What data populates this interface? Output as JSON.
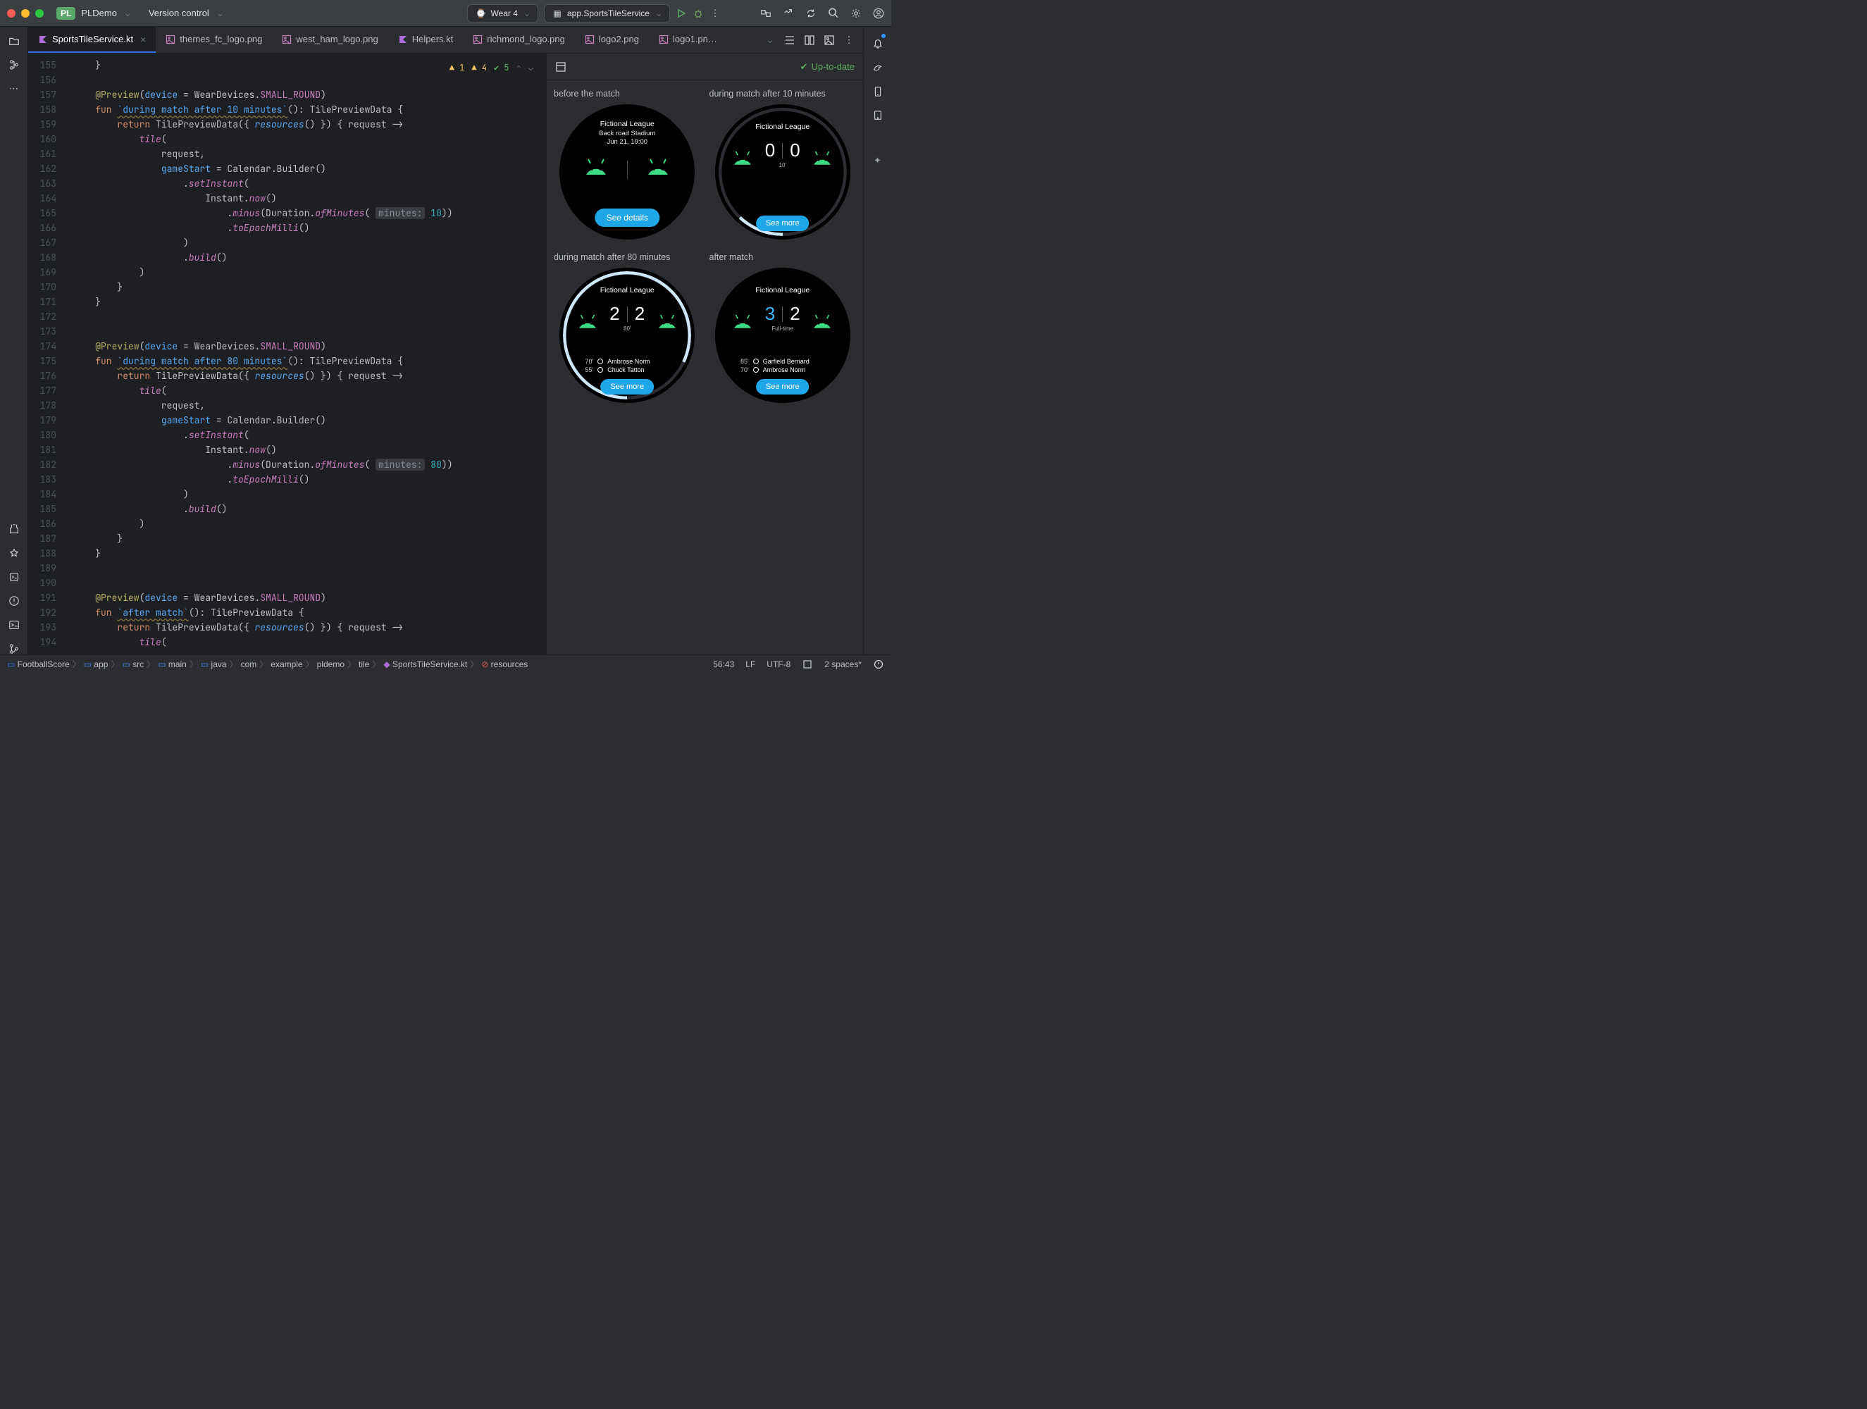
{
  "colors": {
    "traffic_red": "#ff5f57",
    "traffic_yellow": "#febc2e",
    "traffic_green": "#28c840",
    "accent": "#3574f0",
    "run_green": "#59a869",
    "debug": "#6f737a",
    "kotlin": "#af6bd8",
    "img": "#c77dbb",
    "warn_num": "#f2c55c",
    "check": "#5fad65",
    "pill": "#1ea7e8",
    "android": "#3ddc84",
    "arc_dim": "#3a3d42",
    "arc_bright": "#cfe8ff"
  },
  "titlebar": {
    "badge": "PL",
    "project": "PLDemo",
    "vcs": "Version control",
    "device": "Wear 4",
    "config": "app.SportsTileService"
  },
  "tabs": [
    {
      "label": "SportsTileService.kt",
      "type": "kt",
      "active": true,
      "closable": true
    },
    {
      "label": "themes_fc_logo.png",
      "type": "img"
    },
    {
      "label": "west_ham_logo.png",
      "type": "img"
    },
    {
      "label": "Helpers.kt",
      "type": "kt"
    },
    {
      "label": "richmond_logo.png",
      "type": "img"
    },
    {
      "label": "logo2.png",
      "type": "img"
    },
    {
      "label": "logo1.png",
      "type": "img",
      "truncated": true
    }
  ],
  "inspection": {
    "errors": 1,
    "warnings": 4,
    "weak": 5
  },
  "line_start": 155,
  "line_end": 194,
  "code": [
    "    }",
    "",
    "    @Preview(device = WearDevices.SMALL_ROUND)",
    "    fun `during match after 10 minutes`(): TilePreviewData {",
    "        return TilePreviewData({ resources() }) { request ->",
    "            tile(",
    "                request,",
    "                gameStart = Calendar.Builder()",
    "                    .setInstant(",
    "                        Instant.now()",
    "                            .minus(Duration.ofMinutes( minutes: 10))",
    "                            .toEpochMilli()",
    "                    )",
    "                    .build()",
    "            )",
    "        }",
    "    }",
    "",
    "",
    "    @Preview(device = WearDevices.SMALL_ROUND)",
    "    fun `during match after 80 minutes`(): TilePreviewData {",
    "        return TilePreviewData({ resources() }) { request ->",
    "            tile(",
    "                request,",
    "                gameStart = Calendar.Builder()",
    "                    .setInstant(",
    "                        Instant.now()",
    "                            .minus(Duration.ofMinutes( minutes: 80))",
    "                            .toEpochMilli()",
    "                    )",
    "                    .build()",
    "            )",
    "        }",
    "    }",
    "",
    "",
    "    @Preview(device = WearDevices.SMALL_ROUND)",
    "    fun `after match`(): TilePreviewData {",
    "        return TilePreviewData({ resources() }) { request ->",
    "            tile("
  ],
  "preview": {
    "status": "Up-to-date",
    "tiles": [
      {
        "label": "before the match",
        "league": "Fictional League",
        "stadium": "Back road Stadium",
        "date": "Jun 21, 19:00",
        "btn": "See details"
      },
      {
        "label": "during match after 10 minutes",
        "league": "Fictional League",
        "score": [
          "0",
          "0"
        ],
        "mins": "10'",
        "btn": "See more",
        "arc": 0.12
      },
      {
        "label": "during match after 80 minutes",
        "league": "Fictional League",
        "score": [
          "2",
          "2"
        ],
        "mins": "80'",
        "btn": "See more",
        "arc": 0.82,
        "scorers": [
          {
            "m": "70'",
            "n": "Ambrose Norm"
          },
          {
            "m": "55'",
            "n": "Chuck Tatton"
          }
        ]
      },
      {
        "label": "after match",
        "league": "Fictional League",
        "score": [
          "3",
          "2"
        ],
        "hl": 0,
        "mins": "Full-time",
        "btn": "See more",
        "scorers": [
          {
            "m": "85'",
            "n": "Garfield Bernard"
          },
          {
            "m": "70'",
            "n": "Ambrose Norm"
          }
        ]
      }
    ]
  },
  "breadcrumbs": [
    "FootballScore",
    "app",
    "src",
    "main",
    "java",
    "com",
    "example",
    "pldemo",
    "tile",
    "SportsTileService.kt",
    "resources"
  ],
  "statusbar": {
    "pos": "56:43",
    "sep": "LF",
    "enc": "UTF-8",
    "indent": "2 spaces*"
  }
}
